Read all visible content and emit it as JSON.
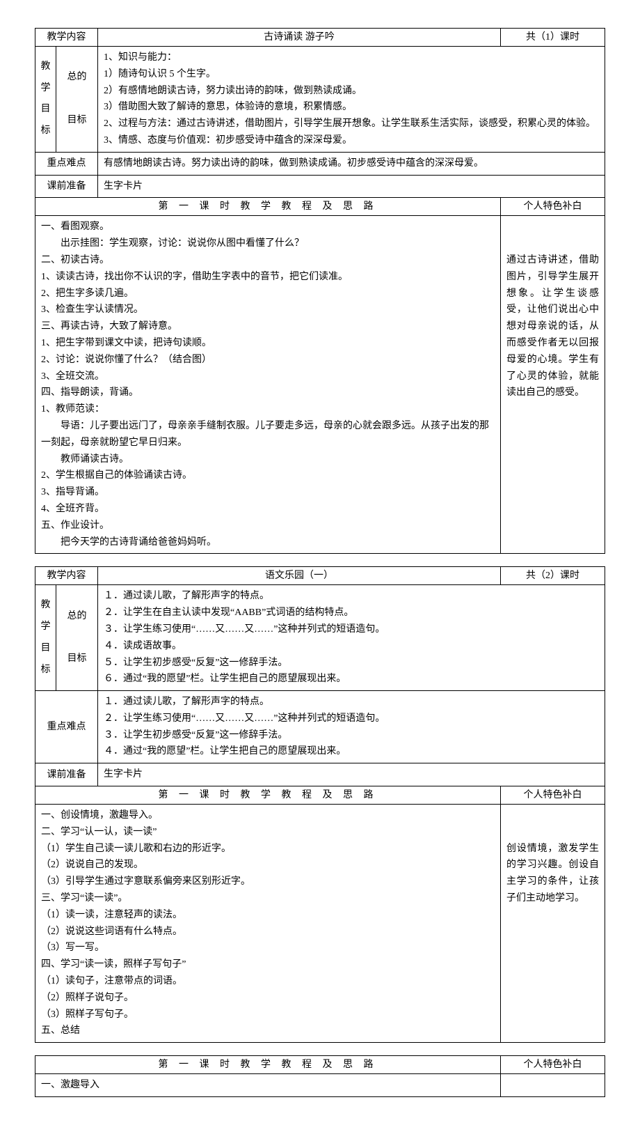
{
  "lesson1": {
    "labels": {
      "content": "教学内容",
      "goalsV": "教学目标",
      "goals2a": "总的",
      "goals2b": "目标",
      "keypoints": "重点难点",
      "prep": "课前准备",
      "sectionTitle": "第 一 课 时 教 学 教 程 及 思 路",
      "notesTitle": "个人特色补白"
    },
    "title": "古诗诵读 游子吟",
    "hours": "共（1）课时",
    "goals": "1、知识与能力：\n1）随诗句认识 5 个生字。\n2）有感情地朗读古诗，努力读出诗的韵味，做到熟读成诵。\n3）借助图大致了解诗的意思，体验诗的意境，积累情感。\n2、过程与方法：通过古诗讲述，借助图片，引导学生展开想象。让学生联系生活实际，谈感受，积累心灵的体验。\n3、情感、态度与价值观：初步感受诗中蕴含的深深母爱。",
    "keypoints": "有感情地朗读古诗。努力读出诗的韵味，做到熟读成诵。初步感受诗中蕴含的深深母爱。",
    "prep": "生字卡片",
    "body": "一、看图观察。\n　　出示挂图：学生观察，讨论：说说你从图中看懂了什么？\n二、初读古诗。\n1、读读古诗，找出你不认识的字，借助生字表中的音节，把它们读准。\n2、把生字多读几遍。\n3、检查生字认读情况。\n三、再读古诗，大致了解诗意。\n1、把生字带到课文中读，把诗句读顺。\n2、讨论：说说你懂了什么？（结合图）\n3、全班交流。\n四、指导朗读，背诵。\n1、教师范读：\n　　导语：儿子要出远门了，母亲亲手缝制衣服。儿子要走多远，母亲的心就会跟多远。从孩子出发的那一刻起，母亲就盼望它早日归来。\n　　教师诵读古诗。\n2、学生根据自己的体验诵读古诗。\n3、指导背诵。\n4、全班齐背。\n五、作业设计。\n　　把今天学的古诗背诵给爸爸妈妈听。",
    "notes": "通过古诗讲述，借助图片，引导学生展开想象。让学生谈感受，让他们说出心中想对母亲说的话，从而感受作者无以回报母爱的心境。学生有了心灵的体验，就能读出自己的感受。"
  },
  "lesson2": {
    "labels": {
      "content": "教学内容",
      "goalsV": "教学目标",
      "goals2a": "总的",
      "goals2b": "目标",
      "keypoints": "重点难点",
      "prep": "课前准备",
      "sectionTitle": "第 一 课 时 教 学 教 程 及 思 路",
      "notesTitle": "个人特色补白",
      "sectionTitle2": "第 一 课 时 教 学 教 程 及 思 路",
      "notesTitle2": "个人特色补白"
    },
    "title": "语文乐园（一）",
    "hours": "共（2）课时",
    "goals": "１．通过读儿歌，了解形声字的特点。\n２．让学生在自主认读中发现“AABB”式词语的结构特点。\n３．让学生练习使用“……又……又……”这种并列式的短语造句。\n４．读成语故事。\n５．让学生初步感受“反复”这一修辞手法。\n６．通过“我的愿望”栏。让学生把自己的愿望展现出来。",
    "keypoints": "１．通过读儿歌，了解形声字的特点。\n２．让学生练习使用“……又……又……”这种并列式的短语造句。\n３．让学生初步感受“反复”这一修辞手法。\n４．通过“我的愿望”栏。让学生把自己的愿望展现出来。",
    "prep": "生字卡片",
    "body": "一、创设情境，激趣导入。\n二、学习“认一认，读一读”\n（1）学生自己读一读儿歌和右边的形近字。\n（2）说说自己的发现。\n（3）引导学生通过字意联系偏旁来区别形近字。\n三、学习“读一读”。\n（1）读一读，注意轻声的读法。\n（2）说说这些词语有什么特点。\n（3）写一写。\n四、学习“读一读，照样子写句子”\n（1）读句子，注意带点的词语。\n（2）照样子说句子。\n（3）照样子写句子。\n五、总结",
    "notes": "创设情境，激发学生的学习兴趣。创设自主学习的条件，让孩子们主动地学习。",
    "body2": "一、激趣导入"
  }
}
